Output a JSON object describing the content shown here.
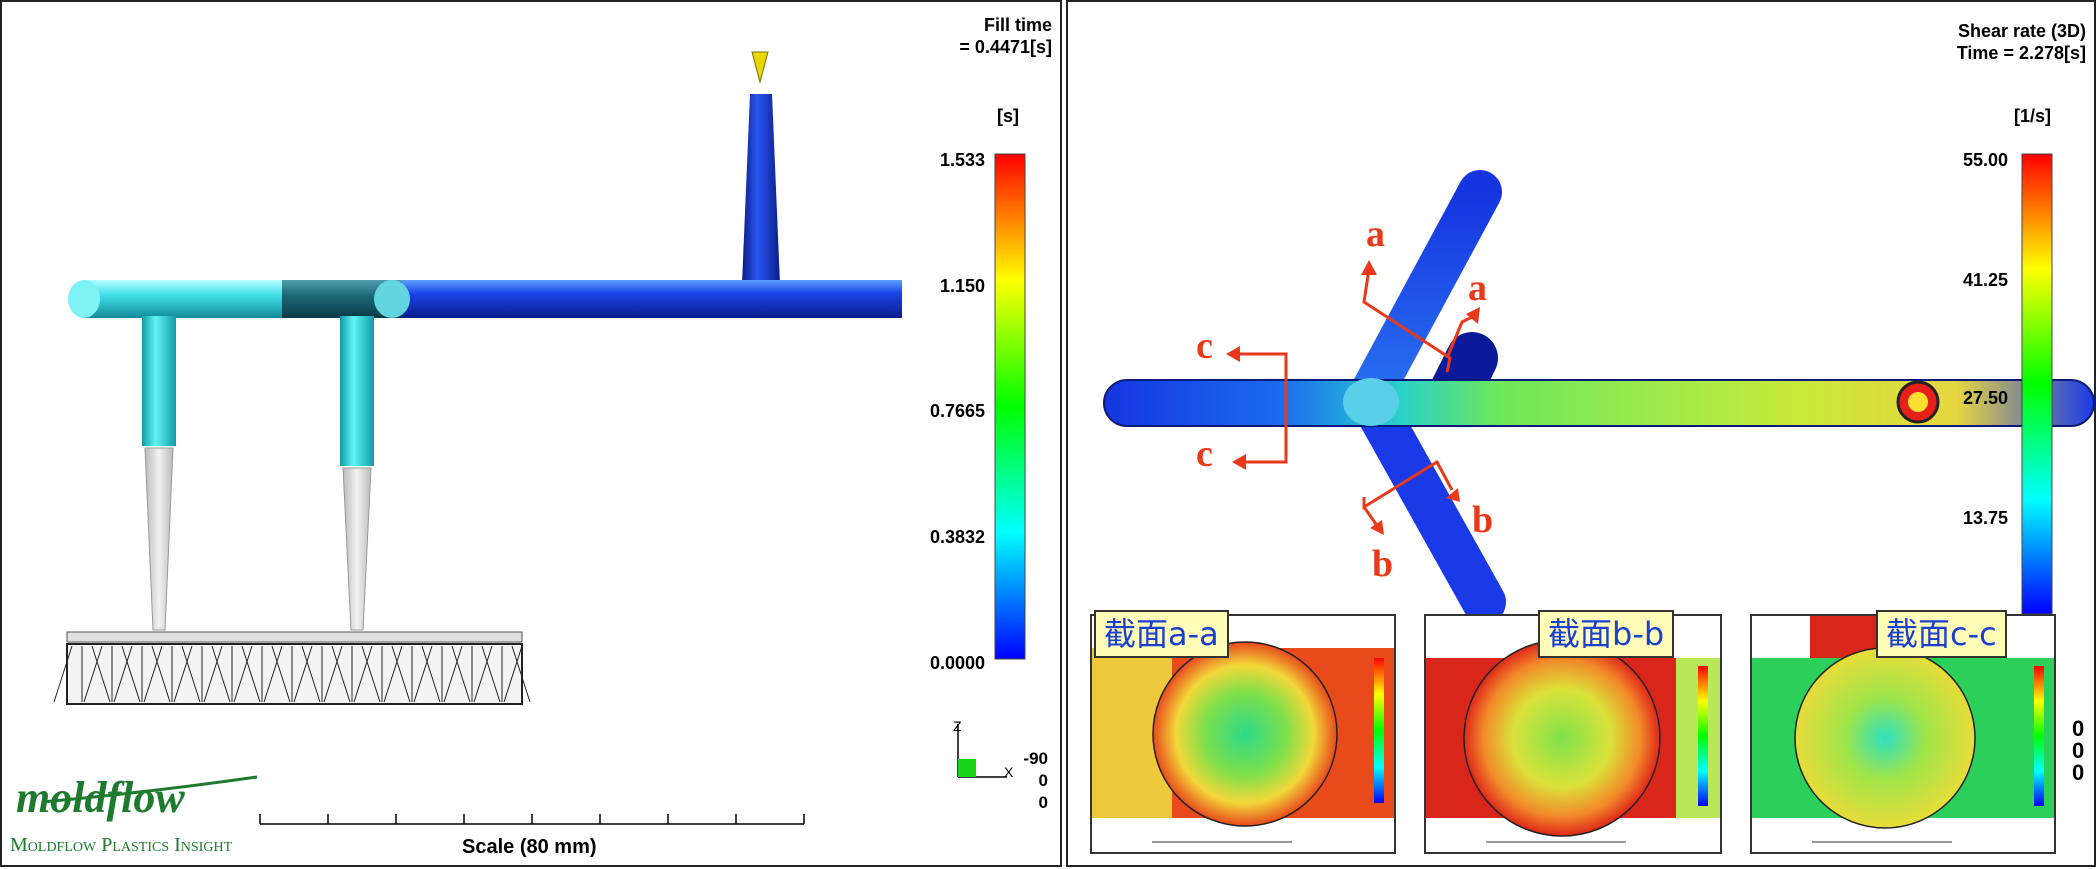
{
  "left": {
    "title_line1": "Fill time",
    "title_line2": "= 0.4471[s]",
    "unit": "[s]",
    "ticks": [
      "1.533",
      "1.150",
      "0.7665",
      "0.3832",
      "0.0000"
    ],
    "axis_label_z": "Z",
    "axis_label_x": "X",
    "orient_values": [
      "-90",
      "0",
      "0"
    ],
    "logo": "moldflow",
    "logo_sub": "Moldflow Plastics Insight",
    "scale_label": "Scale (80 mm)"
  },
  "right": {
    "title_line1": "Shear rate (3D)",
    "title_line2": "Time = 2.278[s]",
    "unit": "[1/s]",
    "ticks": [
      "55.00",
      "41.25",
      "27.50",
      "13.75"
    ],
    "orient_values": [
      "0",
      "0",
      "0"
    ],
    "section_markers": [
      "a",
      "a",
      "b",
      "b",
      "c",
      "c"
    ],
    "insets": [
      {
        "label": "截面a-a"
      },
      {
        "label": "截面b-b"
      },
      {
        "label": "截面c-c"
      }
    ]
  },
  "colors": {
    "logo_green": "#1e7a2e",
    "marker_red": "#e8391b",
    "label_blue": "#1a3fd1",
    "label_bg": "#fffdb8"
  }
}
